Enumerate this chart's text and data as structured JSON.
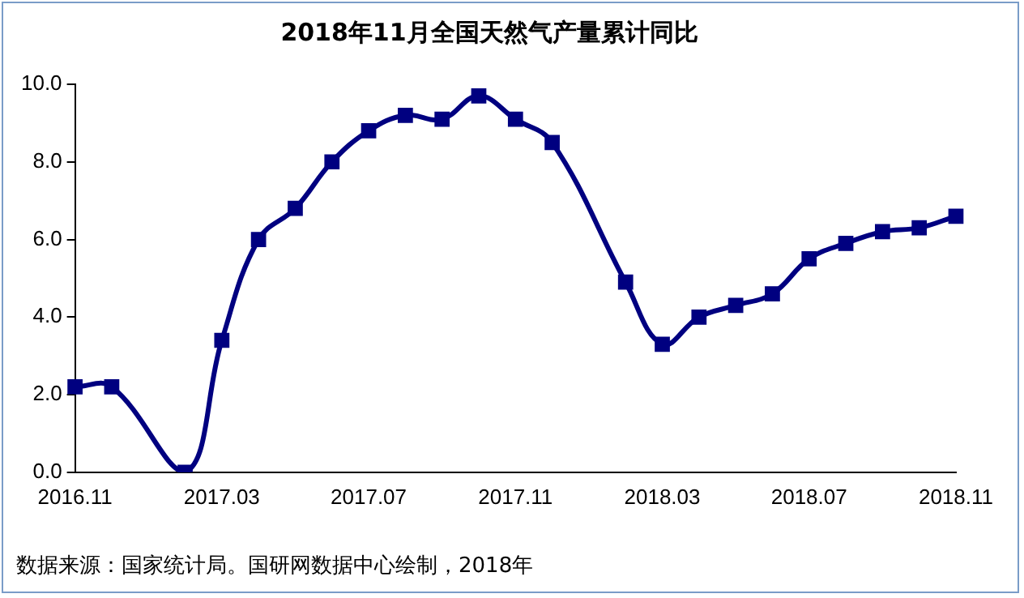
{
  "chart_data": {
    "type": "line",
    "title": "2018年11月全国天然气产量累计同比",
    "categories": [
      "2016.11",
      null,
      null,
      null,
      "2017.03",
      null,
      null,
      null,
      "2017.07",
      null,
      null,
      null,
      "2017.11",
      null,
      null,
      null,
      "2018.03",
      null,
      null,
      null,
      "2018.07",
      null,
      null,
      null,
      "2018.11"
    ],
    "series": [
      {
        "color": "#000080",
        "values": [
          2.2,
          2.2,
          null,
          0.0,
          3.4,
          6.0,
          6.8,
          8.0,
          8.8,
          9.2,
          9.1,
          9.7,
          9.1,
          8.5,
          null,
          4.9,
          3.3,
          4.0,
          4.3,
          4.6,
          5.5,
          5.9,
          6.2,
          6.3,
          6.6
        ]
      }
    ],
    "ylim": [
      0,
      10
    ],
    "yticks": [
      {
        "value": 0,
        "label": "0.0"
      },
      {
        "value": 2,
        "label": "2.0"
      },
      {
        "value": 4,
        "label": "4.0"
      },
      {
        "value": 6,
        "label": "6.0"
      },
      {
        "value": 8,
        "label": "8.0"
      },
      {
        "value": 10,
        "label": "10.0"
      }
    ],
    "grid": false,
    "legend": false,
    "marker": "square",
    "line_style": "solid",
    "annotations": [
      "数据来源：国家统计局。国研网数据中心绘制，2018年"
    ]
  }
}
